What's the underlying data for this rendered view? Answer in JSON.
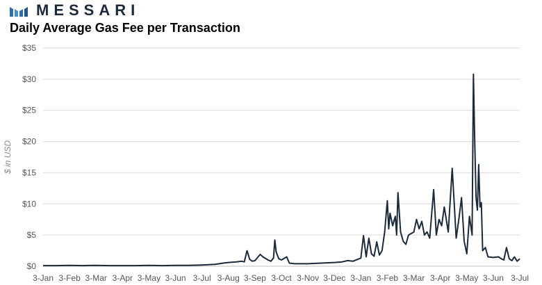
{
  "brand": {
    "name": "MESSARI",
    "mark_color": "#2f6fb0"
  },
  "chart_data": {
    "type": "line",
    "title": "Daily Average Gas Fee per Transaction",
    "xlabel": "",
    "ylabel": "$ in USD",
    "ylim": [
      0,
      35
    ],
    "yticks": [
      "$0",
      "$5",
      "$10",
      "$15",
      "$20",
      "$25",
      "$30",
      "$35"
    ],
    "xticks": [
      "3-Jan",
      "3-Feb",
      "3-Mar",
      "3-Apr",
      "3-May",
      "3-Jun",
      "3-Jul",
      "3-Aug",
      "3-Sep",
      "3-Oct",
      "3-Nov",
      "3-Dec",
      "3-Jan",
      "3-Feb",
      "3-Mar",
      "3-Apr",
      "3-May",
      "3-Jun",
      "3-Jul"
    ],
    "grid": true,
    "line_color": "#1b2a3a",
    "series": [
      {
        "x_unit": "month index (0 = 3-Jan, 18 = 3-Jul)",
        "points": [
          [
            0.0,
            0.1
          ],
          [
            0.5,
            0.1
          ],
          [
            1.0,
            0.15
          ],
          [
            1.5,
            0.1
          ],
          [
            2.0,
            0.15
          ],
          [
            2.5,
            0.1
          ],
          [
            3.0,
            0.1
          ],
          [
            3.5,
            0.1
          ],
          [
            4.0,
            0.15
          ],
          [
            4.5,
            0.1
          ],
          [
            5.0,
            0.15
          ],
          [
            5.5,
            0.15
          ],
          [
            6.0,
            0.2
          ],
          [
            6.5,
            0.3
          ],
          [
            6.8,
            0.5
          ],
          [
            7.0,
            0.6
          ],
          [
            7.3,
            0.7
          ],
          [
            7.5,
            0.8
          ],
          [
            7.6,
            0.7
          ],
          [
            7.7,
            2.5
          ],
          [
            7.8,
            1.1
          ],
          [
            7.9,
            0.8
          ],
          [
            8.0,
            0.9
          ],
          [
            8.2,
            1.9
          ],
          [
            8.3,
            1.5
          ],
          [
            8.5,
            1.0
          ],
          [
            8.6,
            0.8
          ],
          [
            8.7,
            1.3
          ],
          [
            8.75,
            4.2
          ],
          [
            8.8,
            2.3
          ],
          [
            8.9,
            1.2
          ],
          [
            9.0,
            1.0
          ],
          [
            9.2,
            1.5
          ],
          [
            9.3,
            0.5
          ],
          [
            9.5,
            0.4
          ],
          [
            10.0,
            0.4
          ],
          [
            10.5,
            0.5
          ],
          [
            11.0,
            0.6
          ],
          [
            11.3,
            0.7
          ],
          [
            11.5,
            0.9
          ],
          [
            11.7,
            0.8
          ],
          [
            12.0,
            1.3
          ],
          [
            12.1,
            4.9
          ],
          [
            12.2,
            1.5
          ],
          [
            12.3,
            4.5
          ],
          [
            12.4,
            2.0
          ],
          [
            12.5,
            1.6
          ],
          [
            12.6,
            3.9
          ],
          [
            12.7,
            1.8
          ],
          [
            12.8,
            2.5
          ],
          [
            12.9,
            5.5
          ],
          [
            13.0,
            10.5
          ],
          [
            13.05,
            6.0
          ],
          [
            13.1,
            8.5
          ],
          [
            13.2,
            6.5
          ],
          [
            13.3,
            8.0
          ],
          [
            13.35,
            5.0
          ],
          [
            13.4,
            11.8
          ],
          [
            13.5,
            5.5
          ],
          [
            13.6,
            4.0
          ],
          [
            13.7,
            3.5
          ],
          [
            13.8,
            5.0
          ],
          [
            14.0,
            5.5
          ],
          [
            14.1,
            7.5
          ],
          [
            14.2,
            6.0
          ],
          [
            14.3,
            7.2
          ],
          [
            14.4,
            5.0
          ],
          [
            14.5,
            5.5
          ],
          [
            14.6,
            4.5
          ],
          [
            14.75,
            12.3
          ],
          [
            14.85,
            5.0
          ],
          [
            14.95,
            7.5
          ],
          [
            15.05,
            6.5
          ],
          [
            15.15,
            9.5
          ],
          [
            15.3,
            5.5
          ],
          [
            15.45,
            15.7
          ],
          [
            15.6,
            4.5
          ],
          [
            15.7,
            7.5
          ],
          [
            15.8,
            11.0
          ],
          [
            15.9,
            4.0
          ],
          [
            16.0,
            2.0
          ],
          [
            16.1,
            8.0
          ],
          [
            16.2,
            5.0
          ],
          [
            16.25,
            30.8
          ],
          [
            16.3,
            20.0
          ],
          [
            16.35,
            11.0
          ],
          [
            16.4,
            9.0
          ],
          [
            16.45,
            16.3
          ],
          [
            16.5,
            9.5
          ],
          [
            16.55,
            10.2
          ],
          [
            16.6,
            2.5
          ],
          [
            16.7,
            3.0
          ],
          [
            16.8,
            1.5
          ],
          [
            17.0,
            1.4
          ],
          [
            17.2,
            1.5
          ],
          [
            17.3,
            1.2
          ],
          [
            17.4,
            1.0
          ],
          [
            17.5,
            3.0
          ],
          [
            17.6,
            1.2
          ],
          [
            17.7,
            0.9
          ],
          [
            17.8,
            1.5
          ],
          [
            17.9,
            0.8
          ],
          [
            18.0,
            1.2
          ]
        ]
      }
    ]
  }
}
